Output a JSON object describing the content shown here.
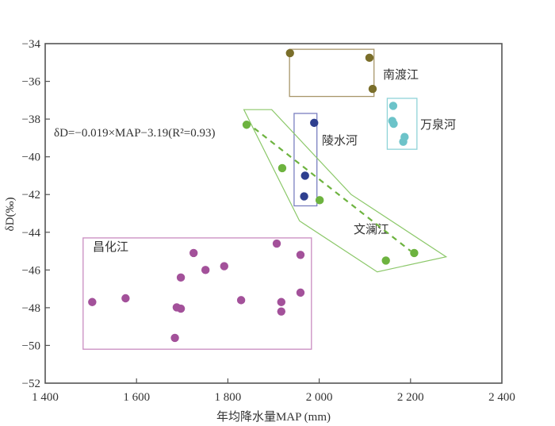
{
  "chart_data": {
    "type": "scatter",
    "title": "",
    "xlabel": "年均降水量MAP (mm)",
    "ylabel": "δD(‰)",
    "xlim": [
      1400,
      2400
    ],
    "ylim": [
      -52,
      -34
    ],
    "xticks": [
      1400,
      1600,
      1800,
      2000,
      2200,
      2400
    ],
    "xtick_labels": [
      "1 400",
      "1 600",
      "1 800",
      "2 000",
      "2 200",
      "2 400"
    ],
    "yticks": [
      -34,
      -36,
      -38,
      -40,
      -42,
      -44,
      -46,
      -48,
      -50,
      -52
    ],
    "ytick_labels": [
      "−34",
      "−36",
      "−38",
      "−40",
      "−42",
      "−44",
      "−46",
      "−48",
      "−50",
      "−52"
    ],
    "grid": false,
    "annotation": "δD=−0.019×MAP−3.19(R²=0.93)",
    "regression": {
      "slope": -0.019,
      "intercept": -3.19,
      "r2": 0.93,
      "x_range": [
        1840,
        2200
      ],
      "style": "dashed",
      "color": "#6db33f"
    },
    "series": [
      {
        "name": "南渡江",
        "color": "#7a6e2a",
        "box_color": "#a8966a",
        "points": [
          [
            1936,
            -34.5
          ],
          [
            2110,
            -34.75
          ],
          [
            2117,
            -36.4
          ]
        ],
        "box": [
          [
            1935,
            -34.3
          ],
          [
            2120,
            -36.8
          ]
        ]
      },
      {
        "name": "万泉河",
        "color": "#6cc3c9",
        "box_color": "#8fd3d8",
        "points": [
          [
            2162,
            -37.3
          ],
          [
            2160,
            -38.1
          ],
          [
            2163,
            -38.25
          ],
          [
            2187,
            -38.95
          ],
          [
            2184,
            -39.2
          ]
        ],
        "box": [
          [
            2149,
            -36.9
          ],
          [
            2214,
            -39.6
          ]
        ]
      },
      {
        "name": "陵水河",
        "color": "#2e3f8f",
        "box_color": "#7a7fc0",
        "points": [
          [
            1989,
            -38.2
          ],
          [
            1969,
            -41.0
          ],
          [
            1967,
            -42.1
          ]
        ],
        "box": [
          [
            1945,
            -37.7
          ],
          [
            1995,
            -42.6
          ]
        ]
      },
      {
        "name": "文澜江",
        "color": "#6db33f",
        "box_color": "#8cc86a",
        "points": [
          [
            1841,
            -38.3
          ],
          [
            1919,
            -40.6
          ],
          [
            2001,
            -42.3
          ],
          [
            2146,
            -45.5
          ],
          [
            2208,
            -45.1
          ]
        ],
        "polygon": [
          [
            1835,
            -37.5
          ],
          [
            1896,
            -37.5
          ],
          [
            2070,
            -42.0
          ],
          [
            2278,
            -45.3
          ],
          [
            2127,
            -46.1
          ],
          [
            1957,
            -43.4
          ]
        ]
      },
      {
        "name": "昌化江",
        "color": "#a3519a",
        "box_color": "#c98cc0",
        "points": [
          [
            1503,
            -47.7
          ],
          [
            1576,
            -47.5
          ],
          [
            1697,
            -46.4
          ],
          [
            1725,
            -45.1
          ],
          [
            1751,
            -46.0
          ],
          [
            1792,
            -45.8
          ],
          [
            1688,
            -47.98
          ],
          [
            1697,
            -48.05
          ],
          [
            1829,
            -47.6
          ],
          [
            1684,
            -49.6
          ],
          [
            1907,
            -44.6
          ],
          [
            1959,
            -45.2
          ],
          [
            1959,
            -47.2
          ],
          [
            1917,
            -47.7
          ],
          [
            1917,
            -48.2
          ]
        ],
        "box": [
          [
            1483,
            -44.3
          ],
          [
            1983,
            -50.2
          ]
        ]
      }
    ]
  }
}
